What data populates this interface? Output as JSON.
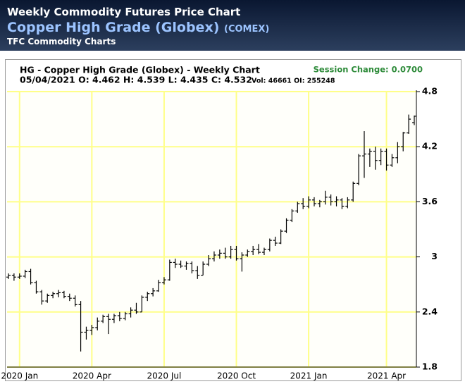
{
  "page_header": {
    "title": "Weekly Commodity Futures Price Chart",
    "subtitle": "Copper High Grade (Globex)",
    "exchange": "(COMEX)",
    "source": "TFC Commodity Charts"
  },
  "chart_data": {
    "type": "ohlc",
    "title": "HG - Copper High Grade (Globex) - Weekly Chart",
    "session_change": "Session Change: 0.0700",
    "last_bar": "05/04/2021 O: 4.462 H: 4.539 L: 4.435 C: 4.532",
    "volume_oi": "Vol: 46661 OI: 255248",
    "color": "#000000",
    "grid": true,
    "grid_color": "#ffff88",
    "ylim": [
      1.8,
      4.8
    ],
    "yticks": [
      1.8,
      2.4,
      3,
      3.6,
      4.2,
      4.8
    ],
    "categories": [
      null,
      null,
      "2020 Jan",
      null,
      null,
      null,
      null,
      null,
      null,
      null,
      null,
      null,
      null,
      null,
      null,
      "2020 Apr",
      null,
      null,
      null,
      null,
      null,
      null,
      null,
      null,
      null,
      null,
      null,
      null,
      "2020 Jul",
      null,
      null,
      null,
      null,
      null,
      null,
      null,
      null,
      null,
      null,
      null,
      null,
      "2020 Oct",
      null,
      null,
      null,
      null,
      null,
      null,
      null,
      null,
      null,
      null,
      null,
      null,
      "2021 Jan",
      null,
      null,
      null,
      null,
      null,
      null,
      null,
      null,
      null,
      null,
      null,
      null,
      null,
      "2021 Apr",
      null,
      null,
      null,
      null,
      null
    ],
    "open": [
      2.78,
      2.8,
      2.78,
      2.79,
      2.84,
      2.72,
      2.62,
      2.52,
      2.58,
      2.6,
      2.61,
      2.57,
      2.55,
      2.48,
      2.18,
      2.2,
      2.23,
      2.3,
      2.35,
      2.32,
      2.36,
      2.33,
      2.38,
      2.42,
      2.4,
      2.56,
      2.6,
      2.63,
      2.72,
      2.75,
      2.94,
      2.92,
      2.9,
      2.93,
      2.85,
      2.8,
      2.92,
      2.98,
      3.02,
      3.04,
      3.0,
      3.08,
      2.98,
      3.02,
      3.06,
      3.08,
      3.05,
      3.08,
      3.18,
      3.15,
      3.28,
      3.4,
      3.5,
      3.58,
      3.55,
      3.62,
      3.58,
      3.6,
      3.65,
      3.6,
      3.62,
      3.55,
      3.62,
      3.8,
      4.1,
      4.12,
      4.15,
      4.05,
      4.15,
      4.0,
      4.08,
      4.2,
      4.35,
      4.462
    ],
    "high": [
      2.82,
      2.82,
      2.82,
      2.86,
      2.87,
      2.74,
      2.64,
      2.6,
      2.62,
      2.64,
      2.63,
      2.6,
      2.58,
      2.52,
      2.24,
      2.26,
      2.34,
      2.37,
      2.38,
      2.38,
      2.4,
      2.4,
      2.45,
      2.5,
      2.58,
      2.62,
      2.66,
      2.75,
      2.78,
      2.97,
      2.98,
      2.96,
      2.95,
      2.95,
      2.9,
      2.95,
      3.02,
      3.06,
      3.08,
      3.1,
      3.12,
      3.12,
      3.05,
      3.08,
      3.12,
      3.14,
      3.1,
      3.2,
      3.22,
      3.3,
      3.42,
      3.52,
      3.6,
      3.64,
      3.66,
      3.65,
      3.62,
      3.72,
      3.68,
      3.66,
      3.64,
      3.65,
      3.82,
      4.12,
      4.37,
      4.18,
      4.2,
      4.18,
      4.18,
      4.12,
      4.25,
      4.36,
      4.55,
      4.539
    ],
    "low": [
      2.76,
      2.74,
      2.76,
      2.77,
      2.7,
      2.6,
      2.48,
      2.5,
      2.55,
      2.56,
      2.55,
      2.52,
      2.46,
      1.97,
      2.1,
      2.15,
      2.2,
      2.28,
      2.16,
      2.28,
      2.3,
      2.31,
      2.34,
      2.38,
      2.4,
      2.52,
      2.57,
      2.62,
      2.7,
      2.74,
      2.88,
      2.88,
      2.86,
      2.82,
      2.76,
      2.8,
      2.9,
      2.95,
      2.98,
      2.98,
      2.98,
      2.96,
      2.84,
      3.0,
      3.02,
      3.03,
      3.02,
      3.06,
      3.12,
      3.14,
      3.26,
      3.38,
      3.48,
      3.52,
      3.53,
      3.55,
      3.54,
      3.57,
      3.56,
      3.55,
      3.52,
      3.53,
      3.6,
      3.78,
      3.86,
      3.98,
      3.95,
      4.0,
      3.94,
      3.98,
      4.02,
      4.15,
      4.34,
      4.435
    ],
    "close": [
      2.8,
      2.78,
      2.79,
      2.84,
      2.72,
      2.62,
      2.52,
      2.58,
      2.6,
      2.61,
      2.57,
      2.55,
      2.48,
      2.18,
      2.2,
      2.23,
      2.3,
      2.35,
      2.32,
      2.36,
      2.33,
      2.38,
      2.42,
      2.4,
      2.56,
      2.6,
      2.63,
      2.72,
      2.75,
      2.94,
      2.92,
      2.9,
      2.93,
      2.85,
      2.8,
      2.92,
      2.98,
      3.02,
      3.04,
      3.0,
      3.08,
      2.98,
      3.02,
      3.06,
      3.08,
      3.05,
      3.08,
      3.18,
      3.15,
      3.28,
      3.4,
      3.5,
      3.58,
      3.55,
      3.62,
      3.58,
      3.6,
      3.65,
      3.6,
      3.62,
      3.55,
      3.62,
      3.8,
      4.1,
      4.12,
      4.15,
      4.05,
      4.15,
      4.0,
      4.08,
      4.2,
      4.35,
      4.5,
      4.532
    ]
  }
}
